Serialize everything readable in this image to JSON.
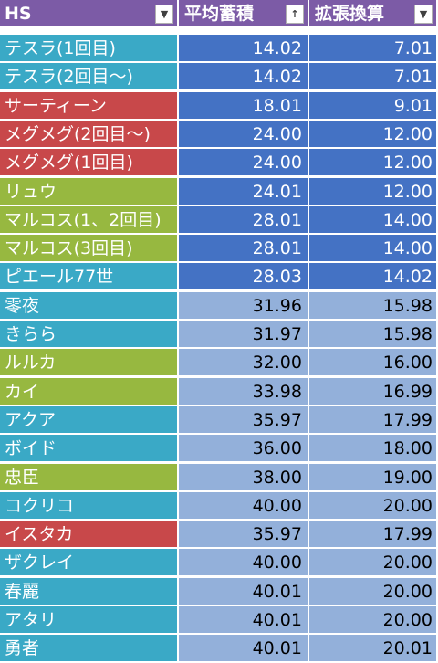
{
  "colors": {
    "header_bg": "#7c5ba6",
    "name_teal": "#3aa9c6",
    "name_red": "#c8484a",
    "name_green": "#97b840",
    "value_dark": "#4472c4",
    "value_light": "#93b0da"
  },
  "header": {
    "col1": "HS",
    "col2": "平均蓄積",
    "col3": "拡張換算",
    "col1_filter_icon": "dropdown-arrow-icon",
    "col2_filter_icon": "sort-ascending-icon",
    "col3_filter_icon": "dropdown-arrow-icon",
    "col1_glyph": "▼",
    "col2_glyph": "↑",
    "col3_glyph": "▼"
  },
  "rows": [
    {
      "name": "テスラ(1回目)",
      "avg": "14.02",
      "ext": "7.01",
      "color": "teal",
      "shade": "dark"
    },
    {
      "name": "テスラ(2回目～)",
      "avg": "14.02",
      "ext": "7.01",
      "color": "teal",
      "shade": "dark"
    },
    {
      "name": "サーティーン",
      "avg": "18.01",
      "ext": "9.01",
      "color": "red",
      "shade": "dark"
    },
    {
      "name": "メグメグ(2回目～)",
      "avg": "24.00",
      "ext": "12.00",
      "color": "red",
      "shade": "dark"
    },
    {
      "name": "メグメグ(1回目)",
      "avg": "24.00",
      "ext": "12.00",
      "color": "red",
      "shade": "dark"
    },
    {
      "name": "リュウ",
      "avg": "24.01",
      "ext": "12.00",
      "color": "green",
      "shade": "dark"
    },
    {
      "name": "マルコス(1、2回目)",
      "avg": "28.01",
      "ext": "14.00",
      "color": "green",
      "shade": "dark"
    },
    {
      "name": "マルコス(3回目)",
      "avg": "28.01",
      "ext": "14.00",
      "color": "green",
      "shade": "dark"
    },
    {
      "name": "ピエール77世",
      "avg": "28.03",
      "ext": "14.02",
      "color": "teal",
      "shade": "dark"
    },
    {
      "name": "零夜",
      "avg": "31.96",
      "ext": "15.98",
      "color": "teal",
      "shade": "light"
    },
    {
      "name": "きらら",
      "avg": "31.97",
      "ext": "15.98",
      "color": "teal",
      "shade": "light"
    },
    {
      "name": "ルルカ",
      "avg": "32.00",
      "ext": "16.00",
      "color": "green",
      "shade": "light"
    },
    {
      "name": "カイ",
      "avg": "33.98",
      "ext": "16.99",
      "color": "green",
      "shade": "light"
    },
    {
      "name": "アクア",
      "avg": "35.97",
      "ext": "17.99",
      "color": "teal",
      "shade": "light"
    },
    {
      "name": "ボイド",
      "avg": "36.00",
      "ext": "18.00",
      "color": "teal",
      "shade": "light"
    },
    {
      "name": "忠臣",
      "avg": "38.00",
      "ext": "19.00",
      "color": "green",
      "shade": "light"
    },
    {
      "name": "コクリコ",
      "avg": "40.00",
      "ext": "20.00",
      "color": "teal",
      "shade": "light"
    },
    {
      "name": "イスタカ",
      "avg": "35.97",
      "ext": "17.99",
      "color": "red",
      "shade": "light"
    },
    {
      "name": "ザクレイ",
      "avg": "40.00",
      "ext": "20.00",
      "color": "teal",
      "shade": "light"
    },
    {
      "name": "春麗",
      "avg": "40.01",
      "ext": "20.00",
      "color": "teal",
      "shade": "light"
    },
    {
      "name": "アタリ",
      "avg": "40.01",
      "ext": "20.00",
      "color": "teal",
      "shade": "light"
    },
    {
      "name": "勇者",
      "avg": "40.01",
      "ext": "20.01",
      "color": "teal",
      "shade": "light"
    }
  ]
}
